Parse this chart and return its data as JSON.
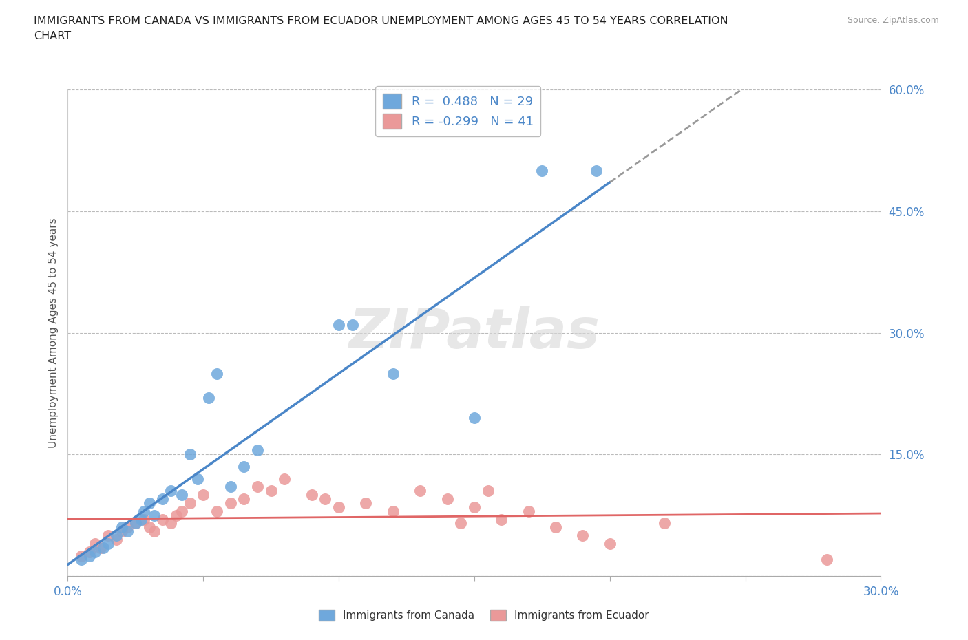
{
  "title": "IMMIGRANTS FROM CANADA VS IMMIGRANTS FROM ECUADOR UNEMPLOYMENT AMONG AGES 45 TO 54 YEARS CORRELATION\nCHART",
  "source_text": "Source: ZipAtlas.com",
  "ylabel": "Unemployment Among Ages 45 to 54 years",
  "xlim": [
    0.0,
    0.3
  ],
  "ylim": [
    0.0,
    0.6
  ],
  "xticks": [
    0.0,
    0.05,
    0.1,
    0.15,
    0.2,
    0.25,
    0.3
  ],
  "yticks": [
    0.0,
    0.15,
    0.3,
    0.45,
    0.6
  ],
  "xtick_labels": [
    "0.0%",
    "",
    "",
    "",
    "",
    "",
    "30.0%"
  ],
  "ytick_labels": [
    "",
    "15.0%",
    "30.0%",
    "45.0%",
    "60.0%"
  ],
  "canada_R": 0.488,
  "canada_N": 29,
  "ecuador_R": -0.299,
  "ecuador_N": 41,
  "canada_color": "#6fa8dc",
  "ecuador_color": "#ea9999",
  "canada_line_color": "#4a86c8",
  "ecuador_line_color": "#e06666",
  "canada_line_solid_end": 0.2,
  "watermark": "ZIPatlas",
  "background_color": "#ffffff",
  "grid_color": "#bbbbbb",
  "canada_x": [
    0.005,
    0.008,
    0.01,
    0.013,
    0.015,
    0.018,
    0.02,
    0.022,
    0.025,
    0.027,
    0.028,
    0.03,
    0.032,
    0.035,
    0.038,
    0.042,
    0.045,
    0.048,
    0.052,
    0.055,
    0.06,
    0.065,
    0.07,
    0.1,
    0.105,
    0.12,
    0.15,
    0.175,
    0.195
  ],
  "canada_y": [
    0.02,
    0.025,
    0.03,
    0.035,
    0.04,
    0.05,
    0.06,
    0.055,
    0.065,
    0.07,
    0.08,
    0.09,
    0.075,
    0.095,
    0.105,
    0.1,
    0.15,
    0.12,
    0.22,
    0.25,
    0.11,
    0.135,
    0.155,
    0.31,
    0.31,
    0.25,
    0.195,
    0.5,
    0.5
  ],
  "ecuador_x": [
    0.005,
    0.008,
    0.01,
    0.012,
    0.015,
    0.018,
    0.02,
    0.022,
    0.025,
    0.028,
    0.03,
    0.032,
    0.035,
    0.038,
    0.04,
    0.042,
    0.045,
    0.05,
    0.055,
    0.06,
    0.065,
    0.07,
    0.075,
    0.08,
    0.09,
    0.095,
    0.1,
    0.11,
    0.12,
    0.13,
    0.14,
    0.145,
    0.15,
    0.155,
    0.16,
    0.17,
    0.18,
    0.19,
    0.2,
    0.22,
    0.28
  ],
  "ecuador_y": [
    0.025,
    0.03,
    0.04,
    0.035,
    0.05,
    0.045,
    0.055,
    0.06,
    0.065,
    0.07,
    0.06,
    0.055,
    0.07,
    0.065,
    0.075,
    0.08,
    0.09,
    0.1,
    0.08,
    0.09,
    0.095,
    0.11,
    0.105,
    0.12,
    0.1,
    0.095,
    0.085,
    0.09,
    0.08,
    0.105,
    0.095,
    0.065,
    0.085,
    0.105,
    0.07,
    0.08,
    0.06,
    0.05,
    0.04,
    0.065,
    0.02
  ]
}
